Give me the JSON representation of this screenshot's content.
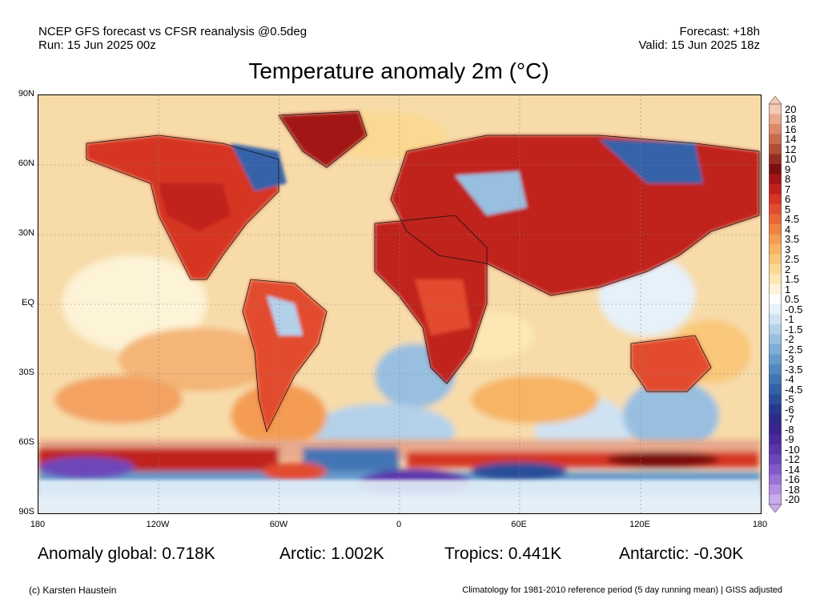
{
  "header": {
    "line1_left": "NCEP GFS forecast vs CFSR reanalysis @0.5deg",
    "line2_left": "Run: 15 Jun 2025 00z",
    "line1_right": "Forecast: +18h",
    "line2_right": "Valid: 15 Jun 2025 18z"
  },
  "title": "Temperature anomaly 2m (°C)",
  "lat_labels": [
    "90N",
    "60N",
    "30N",
    "EQ",
    "30S",
    "60S",
    "90S"
  ],
  "lon_labels": [
    "180",
    "120W",
    "60W",
    "0",
    "60E",
    "120E",
    "180"
  ],
  "stats": {
    "global": "Anomaly global: 0.718K",
    "arctic": "Arctic: 1.002K",
    "tropics": "Tropics: 0.441K",
    "antarctic": "Antarctic: -0.30K"
  },
  "footer": {
    "credit": "(c) Karsten Haustein",
    "note": "Climatology for 1981-2010 reference period (5 day running mean) | GISS adjusted"
  },
  "colorbar": {
    "labels": [
      "20",
      "18",
      "16",
      "14",
      "12",
      "10",
      "9",
      "8",
      "7",
      "6",
      "5",
      "4.5",
      "4",
      "3.5",
      "3",
      "2.5",
      "2",
      "1.5",
      "1",
      "0.5",
      "-0.5",
      "-1",
      "-1.5",
      "-2",
      "-2.5",
      "-3",
      "-3.5",
      "-4",
      "-4.5",
      "-5",
      "-6",
      "-7",
      "-8",
      "-9",
      "-10",
      "-12",
      "-14",
      "-16",
      "-18",
      "-20"
    ],
    "colors": [
      "#f4c8b4",
      "#e9a98c",
      "#dc8a6a",
      "#c96b4e",
      "#b04e36",
      "#952d22",
      "#7a0f0f",
      "#a31414",
      "#c0201a",
      "#d63422",
      "#e24c2e",
      "#ea6637",
      "#f08242",
      "#f49c52",
      "#f7b463",
      "#f9c87a",
      "#fbd993",
      "#fce8b4",
      "#fdf3d6",
      "#ffffff",
      "#e6f1fa",
      "#cfe2f2",
      "#b4d1ea",
      "#98bfe0",
      "#7fadd6",
      "#679acb",
      "#5288c0",
      "#4274b5",
      "#3462a8",
      "#2a4e9a",
      "#26398c",
      "#2d2a87",
      "#3b2390",
      "#4a2a9d",
      "#5a35ab",
      "#6d46ba",
      "#825ac8",
      "#9a72d5",
      "#b18fe1",
      "#c8acec"
    ]
  }
}
